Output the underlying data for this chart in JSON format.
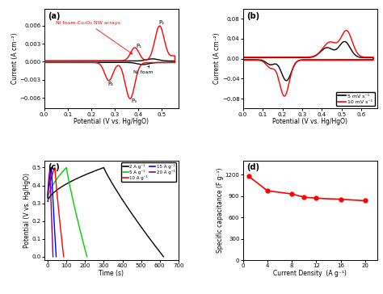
{
  "panel_a": {
    "title": "(a)",
    "xlabel": "Potential (V vs. Hg/HgO)",
    "ylabel": "Current (A cm⁻²)",
    "xlim": [
      0.0,
      0.57
    ],
    "ylim": [
      -0.0078,
      0.0088
    ],
    "yticks": [
      -0.006,
      -0.003,
      0.0,
      0.003,
      0.006
    ],
    "xticks": [
      0.0,
      0.1,
      0.2,
      0.3,
      0.4,
      0.5
    ],
    "label_red": "Ni foam-Co₃O₄ NW arrays",
    "label_black": "Ni foam"
  },
  "panel_b": {
    "title": "(b)",
    "xlabel": "Potential (V vs. Hg/HgO)",
    "ylabel": "Current (A cm⁻²)",
    "xlim": [
      0.0,
      0.68
    ],
    "ylim": [
      -0.1,
      0.1
    ],
    "yticks": [
      -0.08,
      -0.04,
      0.0,
      0.04,
      0.08
    ],
    "xticks": [
      0.0,
      0.1,
      0.2,
      0.3,
      0.4,
      0.5,
      0.6
    ],
    "legend_5mv": "5 mV s⁻¹",
    "legend_10mv": "10 mV s⁻¹"
  },
  "panel_c": {
    "title": "(c)",
    "xlabel": "Time (s)",
    "ylabel": "Potential (V vs. Hg/HgO)",
    "xlim": [
      -20,
      700
    ],
    "ylim": [
      -0.02,
      0.54
    ],
    "yticks": [
      0.0,
      0.1,
      0.2,
      0.3,
      0.4,
      0.5
    ],
    "xticks": [
      0,
      100,
      200,
      300,
      400,
      500,
      600,
      700
    ],
    "legend": [
      "2 A g⁻¹",
      "5 A g⁻¹",
      "10 A g⁻¹",
      "15 A g⁻¹",
      "20 A g⁻¹"
    ],
    "colors_c": [
      "black",
      "#00cc00",
      "red",
      "blue",
      "purple"
    ]
  },
  "panel_d": {
    "title": "(d)",
    "xlabel": "Current Density  (A g⁻¹)",
    "ylabel": "Specific capacitance (F g⁻¹)",
    "xlim": [
      0,
      22
    ],
    "ylim": [
      0,
      1400
    ],
    "yticks": [
      0,
      300,
      600,
      900,
      1200
    ],
    "xticks": [
      0,
      4,
      8,
      12,
      16,
      20
    ],
    "x_data": [
      1,
      4,
      8,
      10,
      12,
      16,
      20
    ],
    "y_data": [
      1175,
      975,
      930,
      885,
      870,
      855,
      835
    ]
  }
}
